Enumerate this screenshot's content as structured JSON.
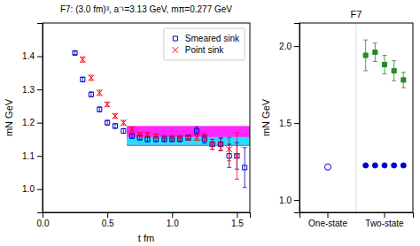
{
  "chart_data": [
    {
      "type": "scatter",
      "title": "F7: (3.0 fm)³, a⁻¹=3.13 GeV, mπ=0.277 GeV",
      "xlabel": "t fm",
      "ylabel": "mN GeV",
      "xlim": [
        0,
        1.6
      ],
      "ylim": [
        0.93,
        1.5
      ],
      "xticks": [
        {
          "value": 0,
          "label": "0.0"
        },
        0.5,
        {
          "value": 1.0,
          "label": "1.0"
        },
        1.5
      ],
      "yticks": [
        {
          "value": 1.0,
          "label": "1.0"
        },
        1.1,
        1.2,
        1.3,
        1.4
      ],
      "grid": false,
      "legend": "upper right",
      "bands": [
        {
          "color": "#FF00FF",
          "x": [
            0.65,
            1.6
          ],
          "y": [
            1.13,
            1.19
          ]
        },
        {
          "color": "#00FFFF",
          "x": [
            0.65,
            1.6
          ],
          "y": [
            1.133,
            1.157
          ]
        }
      ],
      "series": [
        {
          "name": "Smeared sink",
          "color": "#0000CD",
          "marker": "open-square",
          "x": [
            0.25,
            0.31,
            0.375,
            0.44,
            0.5,
            0.56,
            0.625,
            0.69,
            0.75,
            0.81,
            0.875,
            0.94,
            1.0,
            1.06,
            1.125,
            1.19,
            1.25,
            1.31,
            1.375,
            1.44,
            1.5,
            1.56
          ],
          "values": [
            1.41,
            1.33,
            1.285,
            1.24,
            1.2,
            1.19,
            1.175,
            1.16,
            1.155,
            1.15,
            1.15,
            1.15,
            1.15,
            1.15,
            1.155,
            1.175,
            1.15,
            1.135,
            1.135,
            1.1,
            1.1,
            1.065
          ],
          "errors": [
            0.005,
            0.007,
            0.007,
            0.007,
            0.007,
            0.007,
            0.007,
            0.007,
            0.007,
            0.007,
            0.007,
            0.007,
            0.007,
            0.007,
            0.008,
            0.012,
            0.012,
            0.015,
            0.018,
            0.035,
            0.04,
            0.06
          ]
        },
        {
          "name": "Point sink",
          "color": "#FF0000",
          "marker": "x",
          "x": [
            0.31,
            0.375,
            0.44,
            0.5,
            0.56,
            0.625,
            0.69,
            0.75,
            0.81,
            0.875,
            0.94,
            1.0,
            1.06,
            1.125,
            1.19,
            1.25,
            1.31,
            1.375,
            1.44,
            1.5
          ],
          "values": [
            1.39,
            1.335,
            1.29,
            1.255,
            1.22,
            1.2,
            1.18,
            1.165,
            1.165,
            1.16,
            1.155,
            1.155,
            1.155,
            1.155,
            1.155,
            1.155,
            1.135,
            1.135,
            1.12,
            1.1
          ],
          "errors": [
            0.008,
            0.008,
            0.008,
            0.007,
            0.007,
            0.007,
            0.007,
            0.006,
            0.006,
            0.006,
            0.006,
            0.006,
            0.006,
            0.007,
            0.008,
            0.01,
            0.015,
            0.02,
            0.035,
            0.07
          ]
        }
      ]
    },
    {
      "type": "scatter",
      "title": "F7",
      "ylabel": "mN GeV",
      "categories": [
        "One-state",
        "Two-state"
      ],
      "ylim": [
        0.92,
        2.15
      ],
      "yticks": [
        {
          "value": 1.0,
          "label": "1.0"
        },
        1.5,
        {
          "value": 2.0,
          "label": "2.0"
        }
      ],
      "grid": false,
      "series": [
        {
          "color": "#0000CD",
          "marker": "open-circle",
          "x": [
            "One-state"
          ],
          "values": [
            1.215
          ]
        },
        {
          "color": "#0000CD",
          "marker": "circle",
          "x": [
            "Two-state",
            "Two-state",
            "Two-state",
            "Two-state",
            "Two-state"
          ],
          "values": [
            1.225,
            1.225,
            1.225,
            1.225,
            1.225
          ],
          "errors": [
            0.005,
            0.005,
            0.005,
            0.005,
            0.005
          ]
        },
        {
          "color": "#228B22",
          "marker": "square",
          "x": [
            "Two-state",
            "Two-state",
            "Two-state",
            "Two-state",
            "Two-state"
          ],
          "values": [
            1.94,
            1.96,
            1.88,
            1.84,
            1.78
          ],
          "errors": [
            0.1,
            0.06,
            0.06,
            0.065,
            0.05
          ]
        }
      ]
    }
  ]
}
